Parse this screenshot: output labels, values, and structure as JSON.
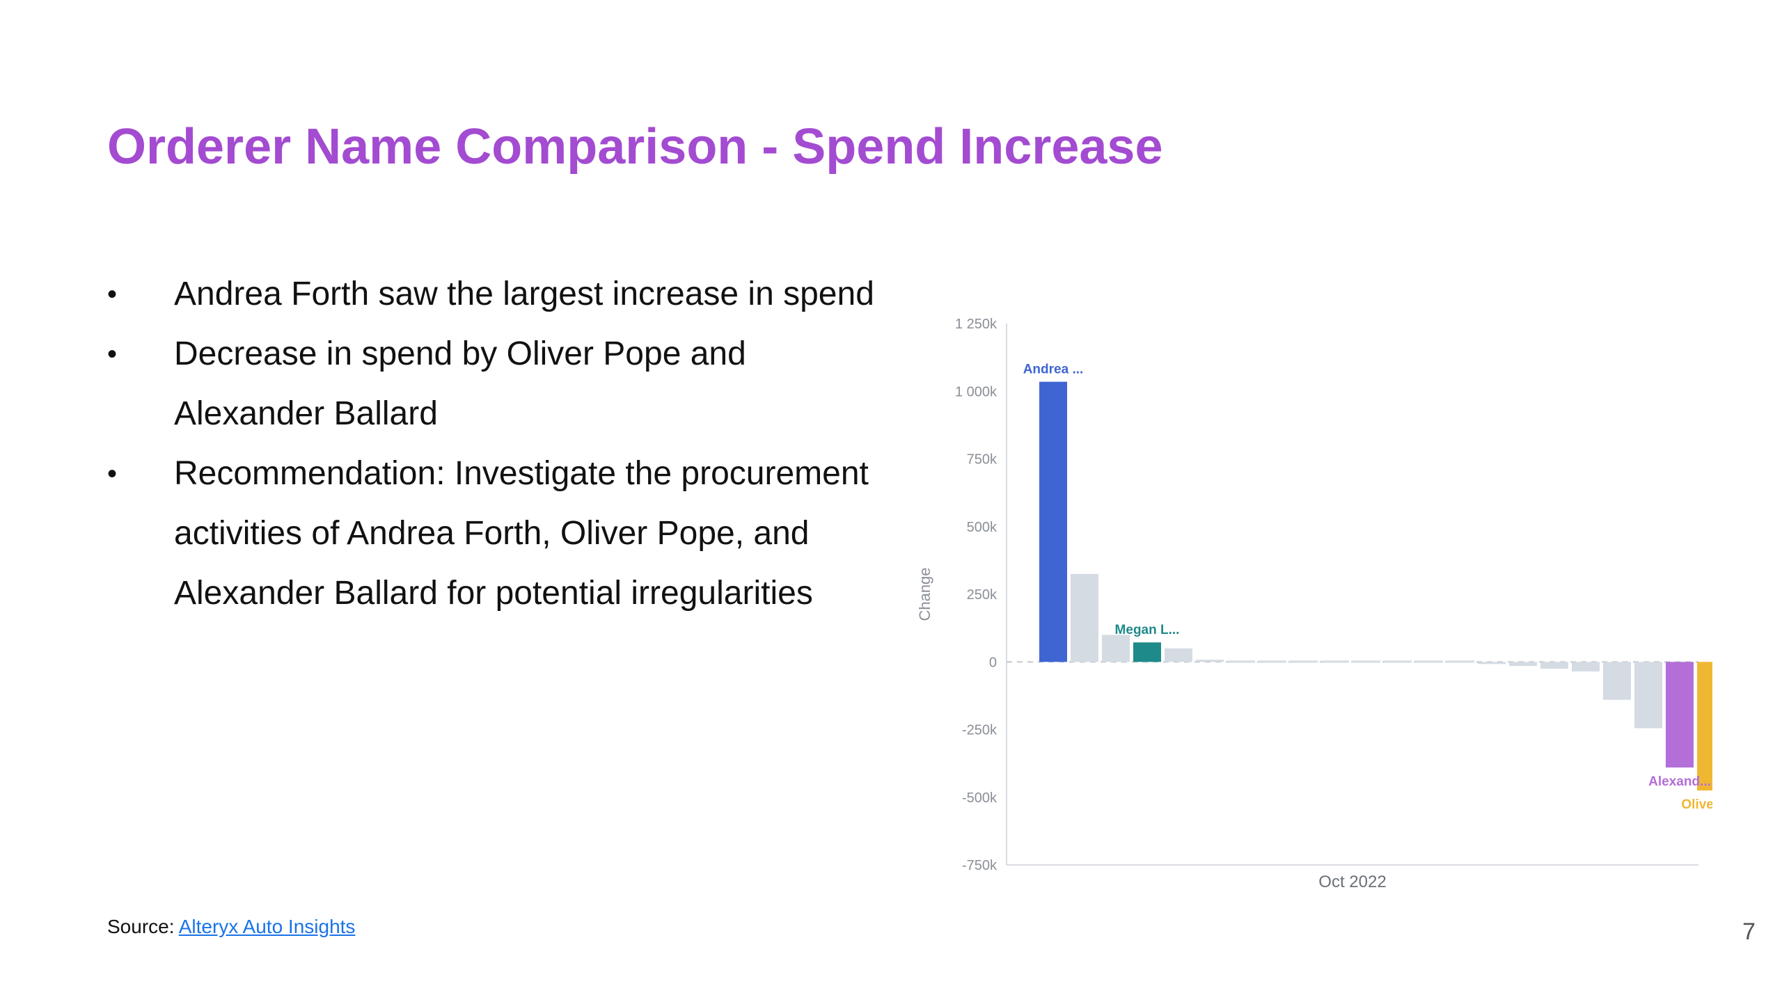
{
  "slide": {
    "title": "Orderer Name Comparison - Spend Increase",
    "bullets": [
      "Andrea Forth saw the largest increase in spend",
      "Decrease in spend by Oliver Pope and Alexander Ballard",
      "Recommendation: Investigate the procurement activities of Andrea Forth, Oliver Pope, and Alexander Ballard for potential irregularities"
    ],
    "bullet_symbol": "•",
    "source_label": "Source:",
    "source_link_text": "Alteryx Auto Insights",
    "page_number": "7"
  },
  "chart_data": {
    "type": "bar",
    "title": "",
    "xlabel": "Oct 2022",
    "ylabel": "Change",
    "ylim": [
      -750000,
      1250000
    ],
    "yticks": [
      1250000,
      1000000,
      750000,
      500000,
      250000,
      0,
      -250000,
      -500000,
      -750000
    ],
    "ytick_labels": [
      "1 250k",
      "1 000k",
      "750k",
      "500k",
      "250k",
      "0",
      "-250k",
      "-500k",
      "-750k"
    ],
    "zero_line": "dashed",
    "grid": false,
    "values": [
      1035000,
      325000,
      100000,
      72000,
      50000,
      8000,
      5000,
      5000,
      5000,
      5000,
      5000,
      5000,
      5000,
      5000,
      -8000,
      -15000,
      -25000,
      -35000,
      -140000,
      -245000,
      -390000,
      -475000
    ],
    "colors": [
      "#3f65d3",
      "#d5dbe3",
      "#d5dbe3",
      "#1f8a8a",
      "#d5dbe3",
      "#d5dbe3",
      "#d5dbe3",
      "#d5dbe3",
      "#d5dbe3",
      "#d5dbe3",
      "#d5dbe3",
      "#d5dbe3",
      "#d5dbe3",
      "#d5dbe3",
      "#d5dbe3",
      "#d5dbe3",
      "#d5dbe3",
      "#d5dbe3",
      "#d5dbe3",
      "#d5dbe3",
      "#b36ed8",
      "#efb731"
    ],
    "bar_labels": [
      {
        "index": 0,
        "text": "Andrea ...",
        "color": "#3f65d3"
      },
      {
        "index": 3,
        "text": "Megan L...",
        "color": "#1f8a8a"
      },
      {
        "index": 20,
        "text": "Alexand...",
        "color": "#b36ed8"
      },
      {
        "index": 21,
        "text": "Oliver P...",
        "color": "#efb731"
      }
    ]
  }
}
